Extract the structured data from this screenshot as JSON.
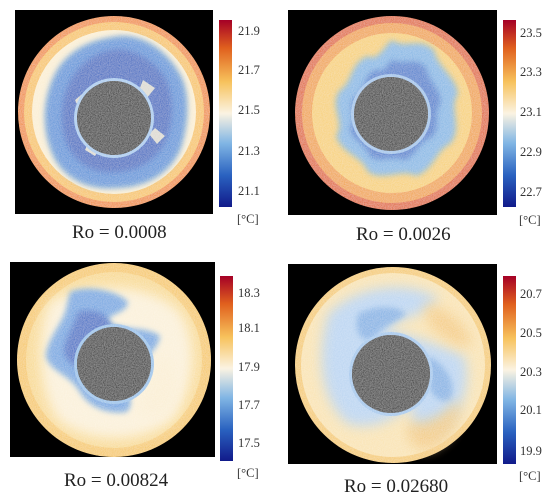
{
  "panels": [
    {
      "caption": "Ro = 0.0008",
      "unit": "[°C]",
      "ticks": [
        "21.9",
        "21.7",
        "21.5",
        "21.3",
        "21.1"
      ],
      "pattern": "multi-lobed cold (blue) annulus, warm outer rim"
    },
    {
      "caption": "Ro = 0.0026",
      "unit": "[°C]",
      "ticks": [
        "23.5",
        "23.3",
        "23.1",
        "22.9",
        "22.7"
      ],
      "pattern": "star-shaped cold region, warm orange rim"
    },
    {
      "caption": "Ro = 0.00824",
      "unit": "[°C]",
      "ticks": [
        "18.3",
        "18.1",
        "17.9",
        "17.7",
        "17.5"
      ],
      "pattern": "large cold blobs on left, warm right side"
    },
    {
      "caption": "Ro = 0.02680",
      "unit": "[°C]",
      "ticks": [
        "20.7",
        "20.5",
        "20.3",
        "20.1",
        "19.9"
      ],
      "pattern": "light two-lobed pattern"
    }
  ],
  "colormap": [
    "#a50026",
    "#e0601e",
    "#f7c25c",
    "#fbf3e2",
    "#80b5e4",
    "#2a62c0",
    "#111a8a"
  ]
}
